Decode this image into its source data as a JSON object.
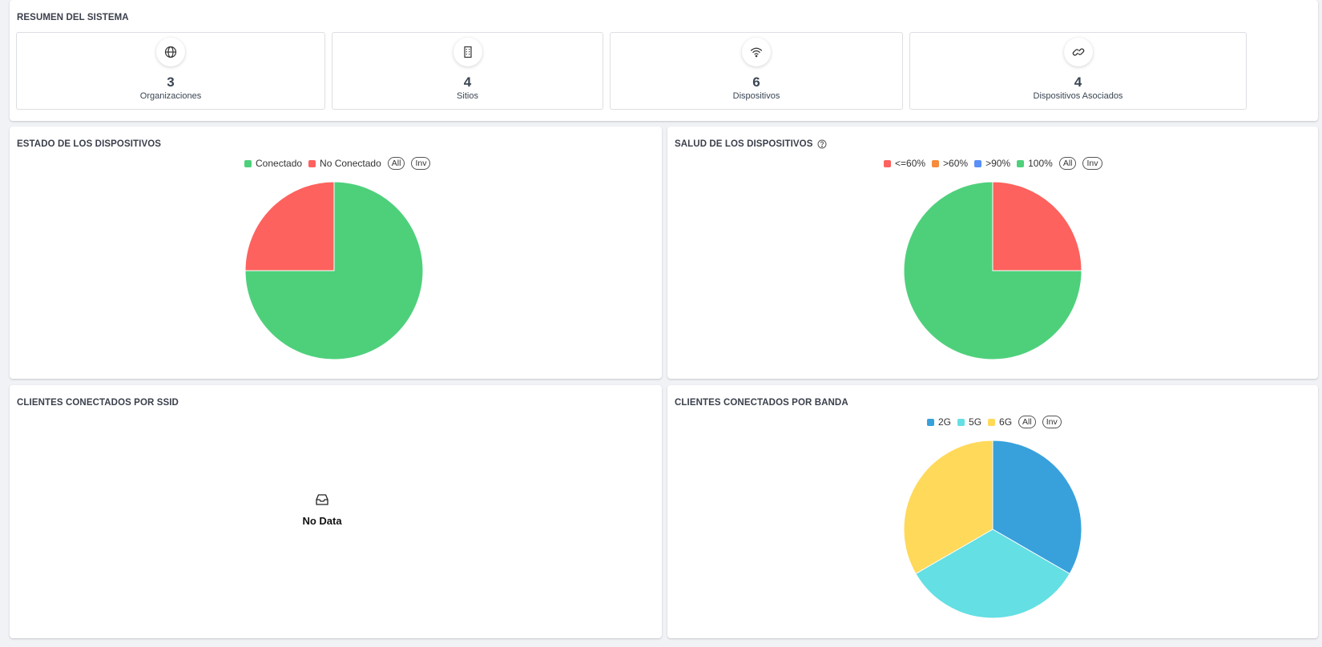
{
  "summary": {
    "title": "RESUMEN DEL SISTEMA",
    "stats": [
      {
        "value": "3",
        "label": "Organizaciones",
        "icon": "globe-icon"
      },
      {
        "value": "4",
        "label": "Sitios",
        "icon": "building-icon"
      },
      {
        "value": "6",
        "label": "Dispositivos",
        "icon": "wifi-icon"
      },
      {
        "value": "4",
        "label": "Dispositivos Asociados",
        "icon": "link-icon"
      }
    ]
  },
  "device_status": {
    "title": "ESTADO DE LOS DISPOSITIVOS",
    "legend": [
      "Conectado",
      "No Conectado"
    ],
    "all_label": "All",
    "inv_label": "Inv"
  },
  "device_health": {
    "title": "SALUD DE LOS DISPOSITIVOS",
    "legend": [
      "<=60%",
      ">60%",
      ">90%",
      "100%"
    ],
    "all_label": "All",
    "inv_label": "Inv"
  },
  "clients_ssid": {
    "title": "CLIENTES CONECTADOS POR SSID",
    "empty_label": "No Data"
  },
  "clients_band": {
    "title": "CLIENTES CONECTADOS POR BANDA",
    "legend": [
      "2G",
      "5G",
      "6G"
    ],
    "all_label": "All",
    "inv_label": "Inv"
  },
  "chart_data": [
    {
      "type": "pie",
      "title": "ESTADO DE LOS DISPOSITIVOS",
      "categories": [
        "Conectado",
        "No Conectado"
      ],
      "values": [
        75,
        25
      ],
      "colors": [
        "#4ed07b",
        "#fd625e"
      ],
      "legend": "top"
    },
    {
      "type": "pie",
      "title": "SALUD DE LOS DISPOSITIVOS",
      "categories": [
        "<=60%",
        ">60%",
        ">90%",
        "100%"
      ],
      "values": [
        25,
        0,
        0,
        75
      ],
      "colors": [
        "#fd625e",
        "#f58b3c",
        "#5b8ff9",
        "#4ed07b"
      ],
      "legend": "top"
    },
    {
      "type": "pie",
      "title": "CLIENTES CONECTADOS POR BANDA",
      "categories": [
        "2G",
        "5G",
        "6G"
      ],
      "values": [
        33.3,
        33.3,
        33.3
      ],
      "colors": [
        "#38a1db",
        "#64dfe3",
        "#ffd95a"
      ],
      "legend": "top"
    }
  ]
}
